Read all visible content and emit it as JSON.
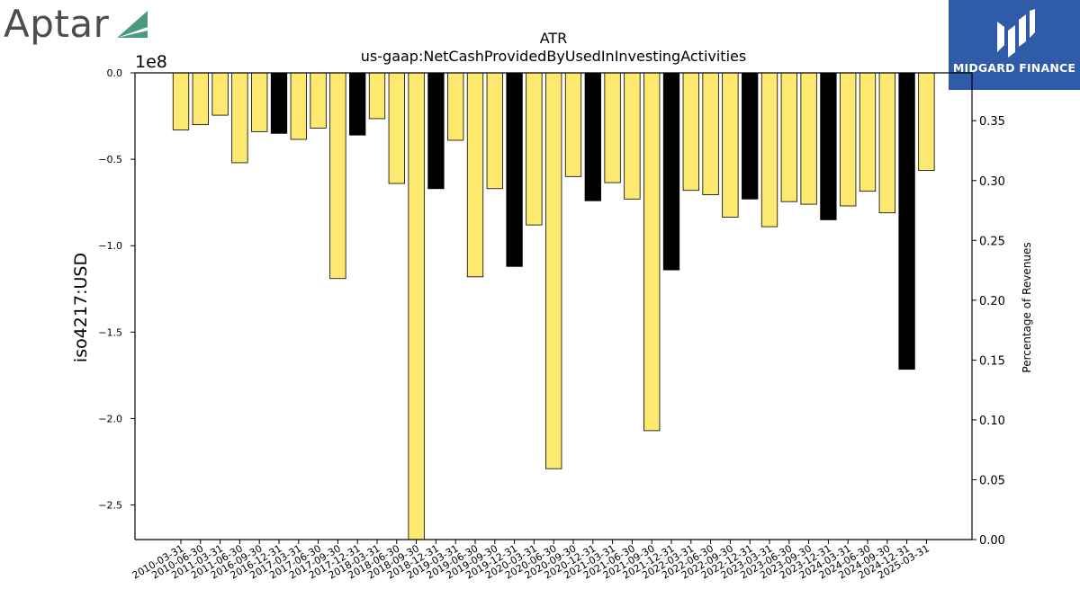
{
  "logos": {
    "left_brand": "Aptar",
    "right_brand": "MIDGARD FINANCE",
    "left_accent_color": "#4a9a7c",
    "right_bg_color": "#2f5ba8"
  },
  "chart_data": {
    "type": "bar",
    "title": "ATR",
    "subtitle": "us-gaap:NetCashProvidedByUsedInInvestingActivities",
    "ylabel": "iso4217:USD",
    "y_offset_label": "1e8",
    "y2label": "Percentage of Revenues",
    "ylim": [
      -2.7,
      0.0
    ],
    "y2lim": [
      0.0,
      0.39
    ],
    "yticks": [
      "0.0",
      "−0.5",
      "−1.0",
      "−1.5",
      "−2.0",
      "−2.5"
    ],
    "yticks_values": [
      0.0,
      -0.5,
      -1.0,
      -1.5,
      -2.0,
      -2.5
    ],
    "y2ticks": [
      "0.00",
      "0.05",
      "0.10",
      "0.15",
      "0.20",
      "0.25",
      "0.30",
      "0.35"
    ],
    "y2ticks_values": [
      0.0,
      0.05,
      0.1,
      0.15,
      0.2,
      0.25,
      0.3,
      0.35
    ],
    "colors": {
      "quarter": "#fde96f",
      "year_end": "#000000",
      "edge": "#000000"
    },
    "grid": false,
    "bars": [
      {
        "value": -0.33,
        "kind": "quarter"
      },
      {
        "value": -0.3,
        "kind": "quarter"
      },
      {
        "value": -0.245,
        "kind": "quarter"
      },
      {
        "value": -0.52,
        "kind": "quarter"
      },
      {
        "value": -0.34,
        "kind": "quarter"
      },
      {
        "value": -0.35,
        "kind": "year_end"
      },
      {
        "value": -0.385,
        "kind": "quarter"
      },
      {
        "value": -0.32,
        "kind": "quarter"
      },
      {
        "value": -1.19,
        "kind": "quarter"
      },
      {
        "value": -0.36,
        "kind": "year_end"
      },
      {
        "value": -0.265,
        "kind": "quarter"
      },
      {
        "value": -0.64,
        "kind": "quarter"
      },
      {
        "value": -2.7,
        "kind": "quarter"
      },
      {
        "value": -0.67,
        "kind": "year_end"
      },
      {
        "value": -0.39,
        "kind": "quarter"
      },
      {
        "value": -1.18,
        "kind": "quarter"
      },
      {
        "value": -0.67,
        "kind": "quarter"
      },
      {
        "value": -1.12,
        "kind": "year_end"
      },
      {
        "value": -0.88,
        "kind": "quarter"
      },
      {
        "value": -2.29,
        "kind": "quarter"
      },
      {
        "value": -0.6,
        "kind": "quarter"
      },
      {
        "value": -0.74,
        "kind": "year_end"
      },
      {
        "value": -0.635,
        "kind": "quarter"
      },
      {
        "value": -0.73,
        "kind": "quarter"
      },
      {
        "value": -2.07,
        "kind": "quarter"
      },
      {
        "value": -1.14,
        "kind": "year_end"
      },
      {
        "value": -0.68,
        "kind": "quarter"
      },
      {
        "value": -0.705,
        "kind": "quarter"
      },
      {
        "value": -0.835,
        "kind": "quarter"
      },
      {
        "value": -0.73,
        "kind": "year_end"
      },
      {
        "value": -0.89,
        "kind": "quarter"
      },
      {
        "value": -0.745,
        "kind": "quarter"
      },
      {
        "value": -0.76,
        "kind": "quarter"
      },
      {
        "value": -0.85,
        "kind": "year_end"
      },
      {
        "value": -0.77,
        "kind": "quarter"
      },
      {
        "value": -0.685,
        "kind": "quarter"
      },
      {
        "value": -0.81,
        "kind": "quarter"
      },
      {
        "value": -1.715,
        "kind": "year_end"
      },
      {
        "value": -0.565,
        "kind": "quarter"
      }
    ],
    "tick_labels": [
      "2010-03-31",
      "2010-06-30",
      "2011-03-31",
      "2011-06-30",
      "2016-09-30",
      "2016-12-31",
      "2017-03-31",
      "2017-06-30",
      "2017-09-30",
      "2017-12-31",
      "2018-03-31",
      "2018-06-30",
      "2018-09-30",
      "2018-12-31",
      "2019-03-31",
      "2019-06-30",
      "2019-09-30",
      "2019-12-31",
      "2020-03-31",
      "2020-06-30",
      "2020-09-30",
      "2020-12-31",
      "2021-03-31",
      "2021-06-30",
      "2021-09-30",
      "2021-12-31",
      "2022-03-31",
      "2022-06-30",
      "2022-09-30",
      "2022-12-31",
      "2023-03-31",
      "2023-06-30",
      "2023-09-30",
      "2023-12-31",
      "2024-03-31",
      "2024-06-30",
      "2024-09-30",
      "2024-12-31",
      "2025-03-31"
    ]
  }
}
